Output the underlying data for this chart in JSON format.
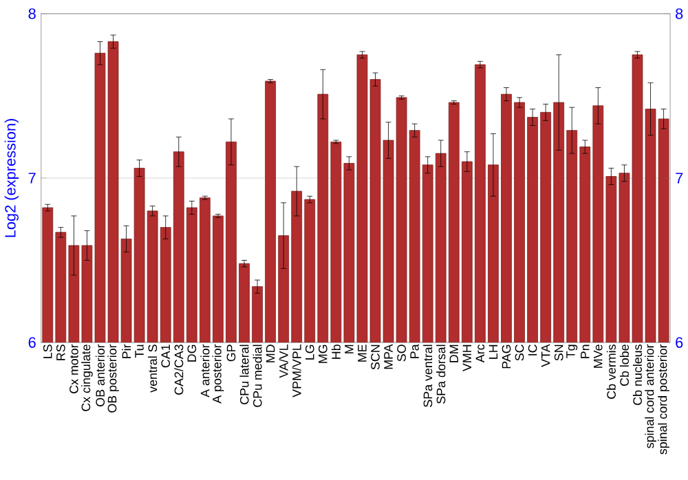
{
  "chart_data": {
    "type": "bar",
    "ylabel": "Log2 (expression)",
    "categories": [
      "LS",
      "RS",
      "Cx motor",
      "Cx cingulate",
      "OB anterior",
      "OB posterior",
      "Pir",
      "Tu",
      "ventral S",
      "CA1",
      "CA2/CA3",
      "DG",
      "A anterior",
      "A posterior",
      "GP",
      "CPu lateral",
      "CPu medial",
      "MD",
      "VA/VL",
      "VPM/VPL",
      "LG",
      "MG",
      "Hb",
      "M",
      "ME",
      "SCN",
      "MPA",
      "SO",
      "Pa",
      "SPa ventral",
      "SPa dorsal",
      "DM",
      "VMH",
      "Arc",
      "LH",
      "PAG",
      "SC",
      "IC",
      "VTA",
      "SN",
      "Tg",
      "Pn",
      "MVe",
      "Cb vermis",
      "Cb lobe",
      "Cb nucleus",
      "spinal cord anterior",
      "spinal cord posterior"
    ],
    "values": [
      6.82,
      6.67,
      6.59,
      6.59,
      7.76,
      7.83,
      6.63,
      7.06,
      6.8,
      6.7,
      7.16,
      6.82,
      6.88,
      6.77,
      7.22,
      6.48,
      6.34,
      7.59,
      6.65,
      6.92,
      6.87,
      7.51,
      7.22,
      7.09,
      7.75,
      7.6,
      7.23,
      7.49,
      7.29,
      7.08,
      7.15,
      7.46,
      7.1,
      7.69,
      7.08,
      7.51,
      7.46,
      7.37,
      7.4,
      7.46,
      7.29,
      7.19,
      7.44,
      7.01,
      7.03,
      7.75,
      7.42,
      7.36
    ],
    "errors": [
      0.02,
      0.03,
      0.18,
      0.09,
      0.07,
      0.04,
      0.08,
      0.05,
      0.03,
      0.07,
      0.09,
      0.04,
      0.01,
      0.01,
      0.14,
      0.02,
      0.04,
      0.01,
      0.2,
      0.15,
      0.02,
      0.15,
      0.01,
      0.04,
      0.02,
      0.04,
      0.11,
      0.01,
      0.04,
      0.05,
      0.08,
      0.01,
      0.06,
      0.02,
      0.19,
      0.04,
      0.03,
      0.05,
      0.05,
      0.29,
      0.14,
      0.04,
      0.11,
      0.05,
      0.05,
      0.02,
      0.16,
      0.06
    ],
    "color": "#b22d2d",
    "ylim": [
      6,
      8
    ],
    "yticks": [
      6,
      7,
      8
    ],
    "y2lim": [
      6,
      8
    ],
    "y2ticks": [
      6,
      7,
      8
    ],
    "grid": "y"
  }
}
